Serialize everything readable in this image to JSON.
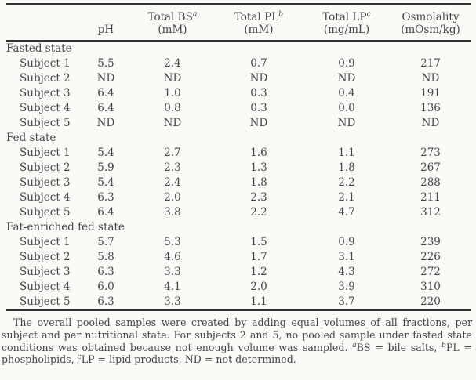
{
  "colors": {
    "text": "#42474c",
    "rule": "#2f3437",
    "background": "#fbfaf7"
  },
  "table": {
    "columns": [
      {
        "label": "",
        "sup": "",
        "unit": ""
      },
      {
        "label": "pH",
        "sup": "",
        "unit": ""
      },
      {
        "label": "Total BS",
        "sup": "a",
        "unit": "(mM)"
      },
      {
        "label": "Total PL",
        "sup": "b",
        "unit": "(mM)"
      },
      {
        "label": "Total LP",
        "sup": "c",
        "unit": "(mg/mL)"
      },
      {
        "label": "Osmolality",
        "sup": "",
        "unit": "(mOsm/kg)"
      }
    ],
    "sections": [
      {
        "name": "Fasted state",
        "rows": [
          {
            "label": "Subject 1",
            "values": [
              "5.5",
              "2.4",
              "0.7",
              "0.9",
              "217"
            ]
          },
          {
            "label": "Subject 2",
            "values": [
              "ND",
              "ND",
              "ND",
              "ND",
              "ND"
            ]
          },
          {
            "label": "Subject 3",
            "values": [
              "6.4",
              "1.0",
              "0.3",
              "0.4",
              "191"
            ]
          },
          {
            "label": "Subject 4",
            "values": [
              "6.4",
              "0.8",
              "0.3",
              "0.0",
              "136"
            ]
          },
          {
            "label": "Subject 5",
            "values": [
              "ND",
              "ND",
              "ND",
              "ND",
              "ND"
            ]
          }
        ]
      },
      {
        "name": "Fed state",
        "rows": [
          {
            "label": "Subject 1",
            "values": [
              "5.4",
              "2.7",
              "1.6",
              "1.1",
              "273"
            ]
          },
          {
            "label": "Subject 2",
            "values": [
              "5.9",
              "2.3",
              "1.3",
              "1.8",
              "267"
            ]
          },
          {
            "label": "Subject 3",
            "values": [
              "5.4",
              "2.4",
              "1.8",
              "2.2",
              "288"
            ]
          },
          {
            "label": "Subject 4",
            "values": [
              "6.3",
              "2.0",
              "2.3",
              "2.1",
              "211"
            ]
          },
          {
            "label": "Subject 5",
            "values": [
              "6.4",
              "3.8",
              "2.2",
              "4.7",
              "312"
            ]
          }
        ]
      },
      {
        "name": "Fat-enriched fed state",
        "rows": [
          {
            "label": "Subject 1",
            "values": [
              "5.7",
              "5.3",
              "1.5",
              "0.9",
              "239"
            ]
          },
          {
            "label": "Subject 2",
            "values": [
              "5.8",
              "4.6",
              "1.7",
              "3.1",
              "226"
            ]
          },
          {
            "label": "Subject 3",
            "values": [
              "6.3",
              "3.3",
              "1.2",
              "4.3",
              "272"
            ]
          },
          {
            "label": "Subject 4",
            "values": [
              "6.0",
              "4.1",
              "2.0",
              "3.9",
              "310"
            ]
          },
          {
            "label": "Subject 5",
            "values": [
              "6.3",
              "3.3",
              "1.1",
              "3.7",
              "220"
            ]
          }
        ]
      }
    ]
  },
  "footnote": {
    "segments": [
      {
        "text": "The overall pooled samples were created by adding equal volumes of all fractions, per subject and per nutritional state. For subjects 2 and 5, no pooled sample under fasted state conditions was obtained because not enough volume was sampled. ",
        "sup": false
      },
      {
        "text": "a",
        "sup": true
      },
      {
        "text": "BS = bile salts, ",
        "sup": false
      },
      {
        "text": "b",
        "sup": true
      },
      {
        "text": "PL = phospholipids, ",
        "sup": false
      },
      {
        "text": "c",
        "sup": true
      },
      {
        "text": "LP = lipid products, ND = not determined.",
        "sup": false
      }
    ]
  }
}
